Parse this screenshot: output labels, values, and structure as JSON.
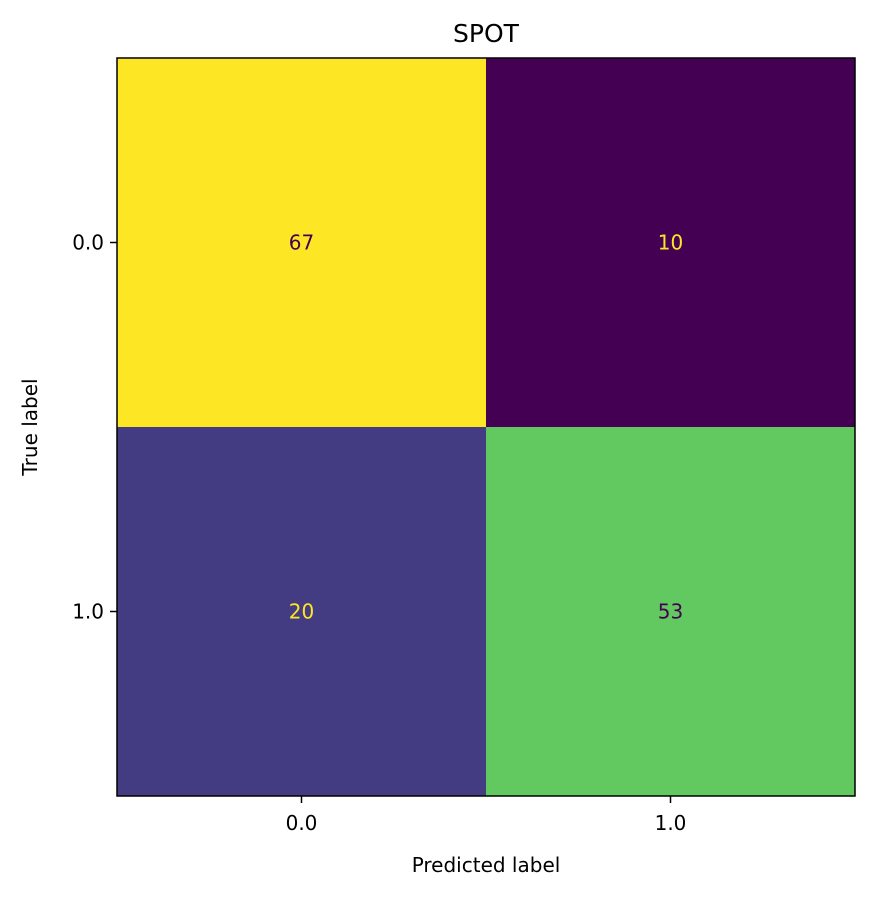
{
  "chart_data": {
    "type": "heatmap",
    "title": "SPOT",
    "xlabel": "Predicted label",
    "ylabel": "True label",
    "x_categories": [
      "0.0",
      "1.0"
    ],
    "y_categories": [
      "0.0",
      "1.0"
    ],
    "values": [
      [
        67,
        10
      ],
      [
        20,
        53
      ]
    ],
    "colormap": "viridis",
    "colorbar": false,
    "grid": false,
    "colors": {
      "low": "#440154",
      "high": "#fde725",
      "text_on_dark": "#fde725",
      "text_on_light": "#440154",
      "frame": "#000000"
    }
  }
}
